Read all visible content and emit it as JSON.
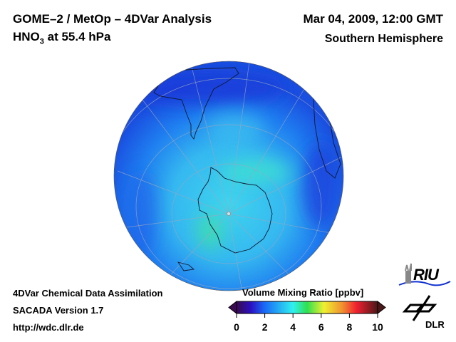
{
  "header": {
    "title_line1": "GOME–2 / MetOp – 4DVar Analysis",
    "species": "HNO",
    "species_sub": "3",
    "pressure": " at 55.4 hPa",
    "date": "Mar 04, 2009, 12:00 GMT",
    "hemisphere": "Southern Hemisphere"
  },
  "footer": {
    "line1": "4DVar Chemical Data Assimilation",
    "line2": "SACADA Version 1.7",
    "line3": "http://wdc.dlr.de"
  },
  "colorbar": {
    "label": "Volume Mixing Ratio [ppbv]",
    "ticks": [
      "0",
      "2",
      "4",
      "6",
      "8",
      "10"
    ],
    "min": 0,
    "max": 10
  },
  "logos": {
    "riu": "RIU",
    "dlr": "DLR"
  }
}
